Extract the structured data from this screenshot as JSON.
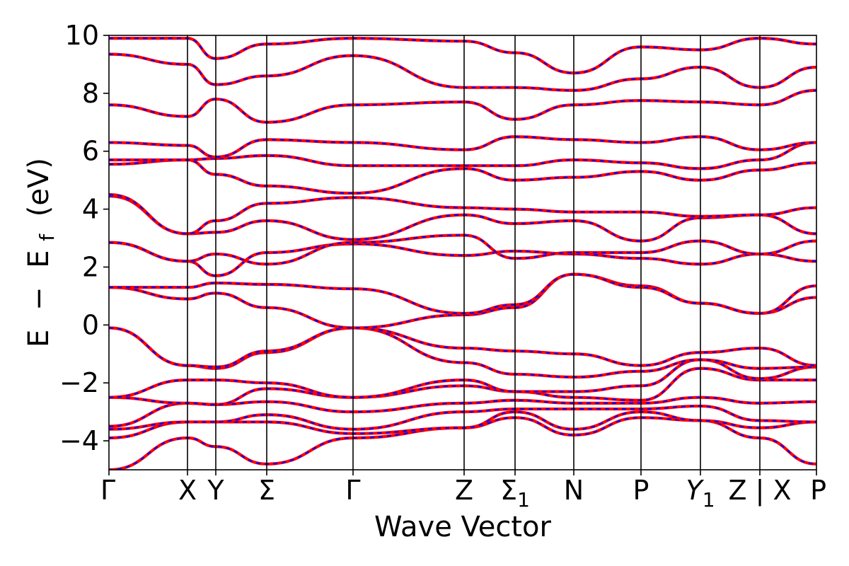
{
  "chart_data": {
    "type": "line",
    "title": "",
    "xlabel": "Wave Vector",
    "ylabel_parts": [
      "E",
      "−",
      "E",
      "f",
      "(eV)"
    ],
    "ylim": [
      -5,
      10
    ],
    "yticks": [
      -4,
      -2,
      0,
      2,
      4,
      6,
      8,
      10
    ],
    "ytick_labels": [
      "−4",
      "−2",
      "0",
      "2",
      "4",
      "6",
      "8",
      "10"
    ],
    "k_points": [
      {
        "k": 0.0,
        "label": "Γ"
      },
      {
        "k": 0.111,
        "label": "X"
      },
      {
        "k": 0.151,
        "label": "Y"
      },
      {
        "k": 0.223,
        "label": "Σ"
      },
      {
        "k": 0.345,
        "label": "Γ"
      },
      {
        "k": 0.502,
        "label": "Z"
      },
      {
        "k": 0.574,
        "label": "Σ",
        "sub": "1"
      },
      {
        "k": 0.657,
        "label": "N"
      },
      {
        "k": 0.752,
        "label": "P"
      },
      {
        "k": 0.836,
        "label": "Y",
        "sub": "1",
        "italic": true
      },
      {
        "k": 0.92,
        "label": "Z | X"
      },
      {
        "k": 1.0,
        "label": "P"
      }
    ],
    "xlim": [
      0,
      1
    ],
    "grid": false,
    "line_styles": {
      "solid_color": "#ff0000",
      "dashed_color": "#0000ff"
    },
    "bands_k": [
      0.0,
      0.111,
      0.151,
      0.223,
      0.345,
      0.502,
      0.574,
      0.657,
      0.752,
      0.836,
      0.92,
      1.0
    ],
    "bands": [
      [
        -5.0,
        -3.9,
        -4.2,
        -4.8,
        -3.9,
        -3.55,
        -3.2,
        -3.8,
        -3.2,
        -3.3,
        -3.9,
        -4.8
      ],
      [
        -3.9,
        -3.35,
        -3.35,
        -3.35,
        -3.75,
        -3.55,
        -3.0,
        -3.6,
        -3.0,
        -3.3,
        -3.55,
        -3.35
      ],
      [
        -3.6,
        -3.35,
        -3.35,
        -3.1,
        -3.6,
        -3.0,
        -2.9,
        -2.9,
        -2.9,
        -2.8,
        -3.3,
        -3.35
      ],
      [
        -3.5,
        -2.7,
        -2.75,
        -2.65,
        -3.0,
        -2.7,
        -2.6,
        -2.7,
        -2.7,
        -2.5,
        -2.7,
        -2.65
      ],
      [
        -2.5,
        -2.7,
        -2.75,
        -2.2,
        -2.5,
        -2.1,
        -2.3,
        -2.5,
        -2.6,
        -1.5,
        -1.9,
        -1.9
      ],
      [
        -2.5,
        -1.9,
        -1.9,
        -2.0,
        -2.5,
        -1.9,
        -2.3,
        -2.3,
        -2.1,
        -1.2,
        -1.85,
        -1.45
      ],
      [
        -0.1,
        -1.4,
        -1.5,
        -0.95,
        -0.1,
        -1.3,
        -1.7,
        -1.8,
        -1.6,
        -1.2,
        -1.5,
        -1.45
      ],
      [
        -0.1,
        -1.4,
        -1.45,
        -0.9,
        -0.1,
        -0.8,
        -0.9,
        -1.0,
        -1.4,
        -0.95,
        -0.8,
        -1.4
      ],
      [
        1.3,
        0.9,
        1.1,
        0.6,
        -0.1,
        0.35,
        0.6,
        1.75,
        1.35,
        0.75,
        0.4,
        0.95
      ],
      [
        1.3,
        1.3,
        1.45,
        1.4,
        1.25,
        0.4,
        0.7,
        1.75,
        1.3,
        0.75,
        0.4,
        1.35
      ],
      [
        2.85,
        2.2,
        1.7,
        2.5,
        2.8,
        2.4,
        2.55,
        2.45,
        2.3,
        2.1,
        2.45,
        2.2
      ],
      [
        2.85,
        2.2,
        2.45,
        2.1,
        2.85,
        3.1,
        2.3,
        2.5,
        2.5,
        2.9,
        2.45,
        2.9
      ],
      [
        4.45,
        3.15,
        3.2,
        3.6,
        2.95,
        3.8,
        3.5,
        3.6,
        2.9,
        3.7,
        3.8,
        3.15
      ],
      [
        4.5,
        3.15,
        3.6,
        4.2,
        4.4,
        4.05,
        4.0,
        3.9,
        3.9,
        3.75,
        3.8,
        4.05
      ],
      [
        5.55,
        5.7,
        5.2,
        4.8,
        4.55,
        5.4,
        5.0,
        5.1,
        5.3,
        5.0,
        5.35,
        5.6
      ],
      [
        5.7,
        5.7,
        5.75,
        5.85,
        5.5,
        5.5,
        5.5,
        5.7,
        5.6,
        5.4,
        5.7,
        6.3
      ],
      [
        6.3,
        6.2,
        5.8,
        6.4,
        6.3,
        6.05,
        6.5,
        6.4,
        6.3,
        6.5,
        6.05,
        6.3
      ],
      [
        7.6,
        7.2,
        7.8,
        7.0,
        7.6,
        7.7,
        7.1,
        7.6,
        7.75,
        7.7,
        7.6,
        8.1
      ],
      [
        9.35,
        9.0,
        8.3,
        8.6,
        9.3,
        8.2,
        8.2,
        8.1,
        8.5,
        8.9,
        8.2,
        8.9
      ],
      [
        9.9,
        9.9,
        9.2,
        9.7,
        9.9,
        9.8,
        9.4,
        8.7,
        9.6,
        9.5,
        9.9,
        9.7
      ]
    ]
  }
}
